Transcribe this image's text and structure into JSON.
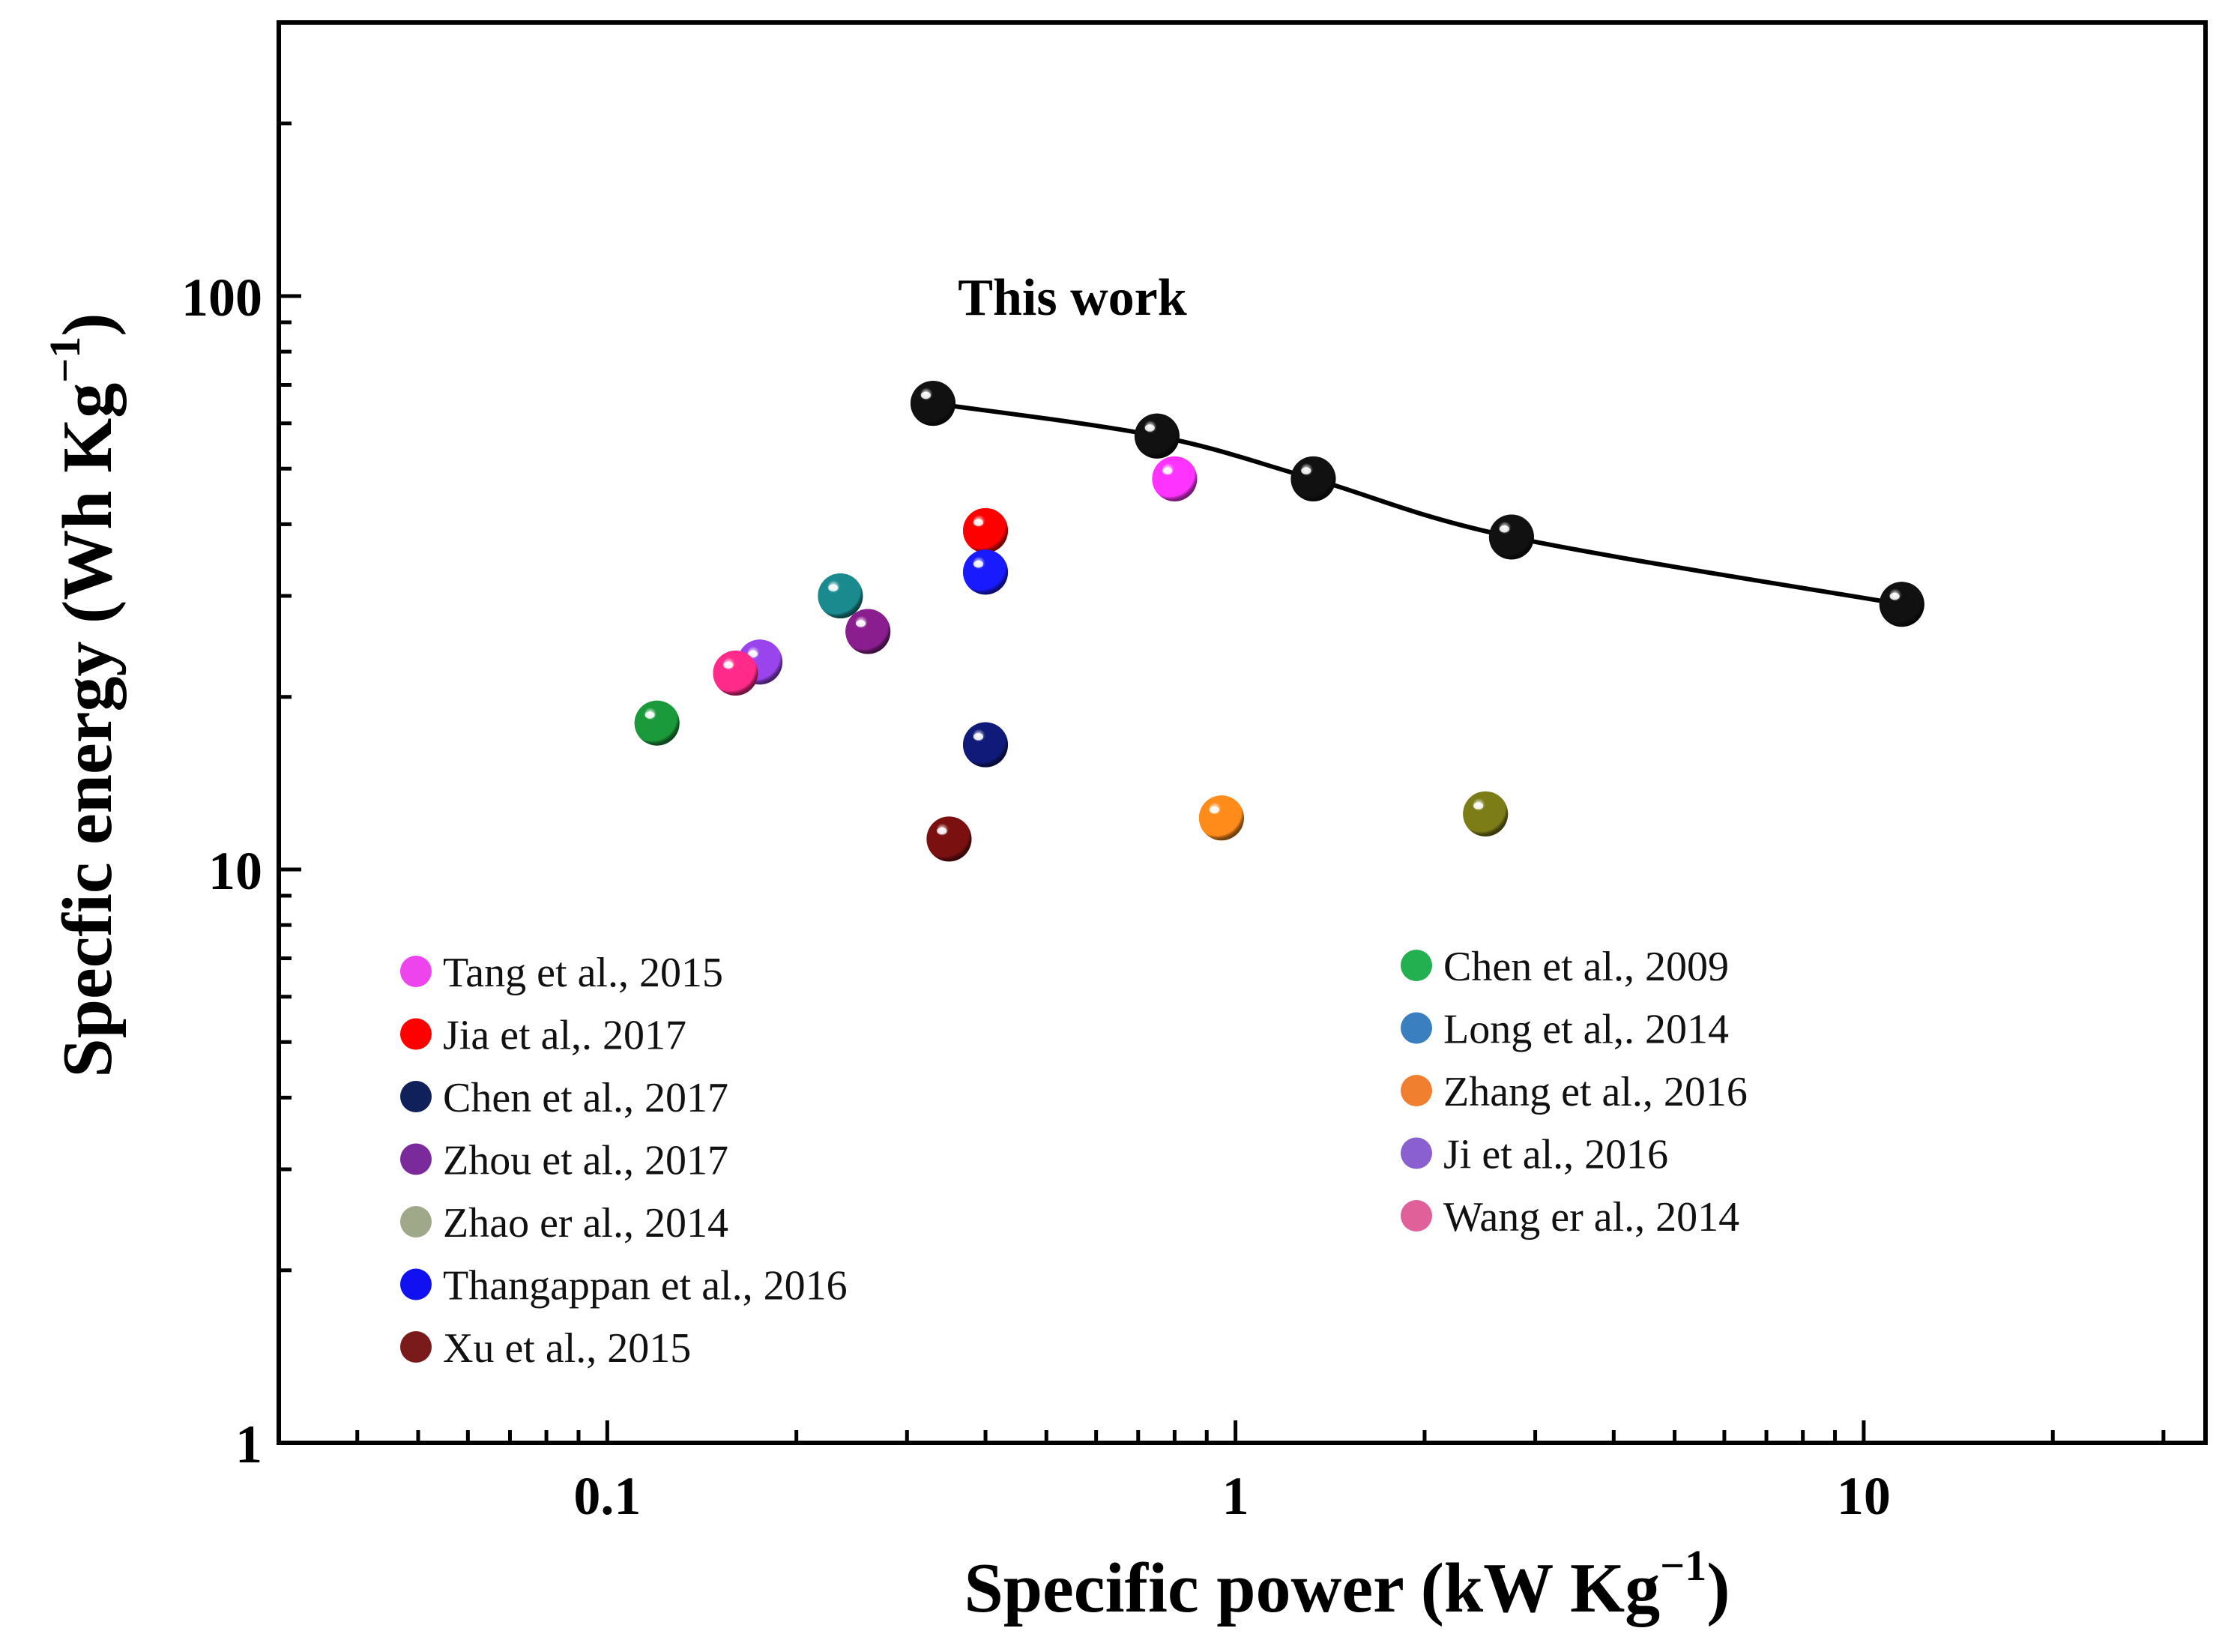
{
  "chart_data": {
    "type": "scatter",
    "x_scale": "log",
    "y_scale": "log",
    "xlim": [
      0.03,
      35
    ],
    "ylim": [
      1,
      300
    ],
    "xlabel": {
      "main": "Specific power (kW Kg",
      "sup": "−1",
      "close": ")"
    },
    "ylabel": {
      "main": "Specfic energy (Wh Kg",
      "sup": "−1",
      "close": ")"
    },
    "x_ticks": [
      {
        "value": 0.1,
        "label": "0.1"
      },
      {
        "value": 1,
        "label": "1"
      },
      {
        "value": 10,
        "label": "10"
      }
    ],
    "y_ticks": [
      {
        "value": 1,
        "label": "1"
      },
      {
        "value": 10,
        "label": "10"
      },
      {
        "value": 100,
        "label": "100"
      }
    ],
    "annotation": {
      "text": "This work",
      "x": 0.55,
      "y": 100
    },
    "this_work": {
      "name": "This work",
      "color": "#111111",
      "points": [
        {
          "x": 0.33,
          "y": 65
        },
        {
          "x": 0.75,
          "y": 57
        },
        {
          "x": 1.33,
          "y": 48
        },
        {
          "x": 2.75,
          "y": 38
        },
        {
          "x": 11.5,
          "y": 29
        }
      ]
    },
    "series": [
      {
        "name": "Tang et al., 2015",
        "color": "#ff33ff",
        "legend_color": "#ee44ee",
        "x": 0.8,
        "y": 48
      },
      {
        "name": "Jia et al,. 2017",
        "color": "#ff0000",
        "legend_color": "#ff0000",
        "x": 0.4,
        "y": 39
      },
      {
        "name": "Chen et al., 2017",
        "color": "#101a78",
        "legend_color": "#10205a",
        "x": 0.4,
        "y": 16.5
      },
      {
        "name": "Zhou et al., 2017",
        "color": "#8a1e8e",
        "legend_color": "#7a2a9a",
        "x": 0.26,
        "y": 26
      },
      {
        "name": "Zhao er al., 2014",
        "color": "#7d7d18",
        "legend_color": "#a0a88a",
        "x": 2.5,
        "y": 12.5
      },
      {
        "name": "Thangappan et al., 2016",
        "color": "#1a1aff",
        "legend_color": "#1010f0",
        "x": 0.4,
        "y": 33
      },
      {
        "name": "Xu et al., 2015",
        "color": "#7a1010",
        "legend_color": "#7a1a1a",
        "x": 0.35,
        "y": 11.3
      },
      {
        "name": "Chen et al., 2009",
        "color": "#1a9a3a",
        "legend_color": "#22b050",
        "x": 0.12,
        "y": 18
      },
      {
        "name": "Long et al,. 2014",
        "color": "#1a8a8e",
        "legend_color": "#3a80c0",
        "x": 0.235,
        "y": 30
      },
      {
        "name": "Zhang et al., 2016",
        "color": "#ff8c1a",
        "legend_color": "#f08030",
        "x": 0.95,
        "y": 12.3
      },
      {
        "name": "Ji et al., 2016",
        "color": "#9a44ee",
        "legend_color": "#8a60d0",
        "x": 0.175,
        "y": 23
      },
      {
        "name": "Wang er al., 2014",
        "color": "#ff2a8a",
        "legend_color": "#e0609a",
        "x": 0.16,
        "y": 22
      }
    ],
    "legend_columns": [
      [
        "Tang et al., 2015",
        "Jia et al,. 2017",
        "Chen et al., 2017",
        "Zhou et al., 2017",
        "Zhao er al., 2014",
        "Thangappan et al., 2016",
        "Xu et al., 2015"
      ],
      [
        "Chen et al., 2009",
        "Long et al,. 2014",
        "Zhang et al., 2016",
        "Ji et al., 2016",
        "Wang er al., 2014"
      ]
    ]
  }
}
